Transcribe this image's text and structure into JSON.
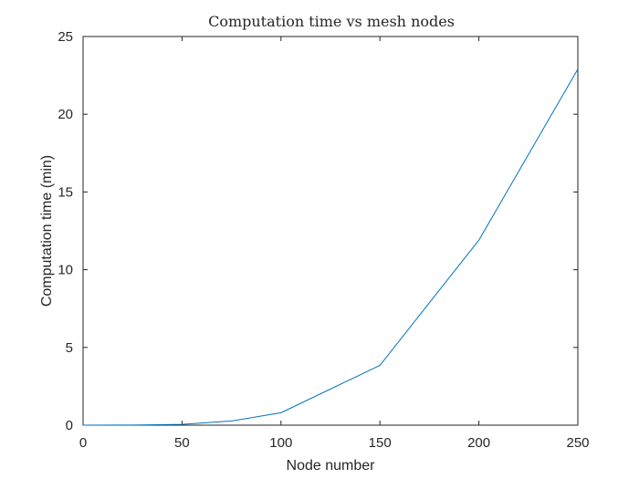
{
  "chart_data": {
    "type": "line",
    "title": "Computation time vs mesh nodes",
    "xlabel": "Node number",
    "ylabel": "Computation time (min)",
    "xlim": [
      0,
      250
    ],
    "ylim": [
      0,
      25
    ],
    "xticks": [
      0,
      50,
      100,
      150,
      200,
      250
    ],
    "yticks": [
      0,
      5,
      10,
      15,
      20,
      25
    ],
    "xtick_labels": [
      "0",
      "50",
      "100",
      "150",
      "200",
      "250"
    ],
    "ytick_labels": [
      "0",
      "5",
      "10",
      "15",
      "20",
      "25"
    ],
    "grid": false,
    "box": true,
    "x": [
      0,
      25,
      50,
      75,
      100,
      150,
      200,
      250
    ],
    "series": [
      {
        "color": "#0072BD",
        "values": [
          0.0,
          0.01,
          0.05,
          0.27,
          0.8,
          3.85,
          11.9,
          22.9
        ]
      }
    ]
  }
}
